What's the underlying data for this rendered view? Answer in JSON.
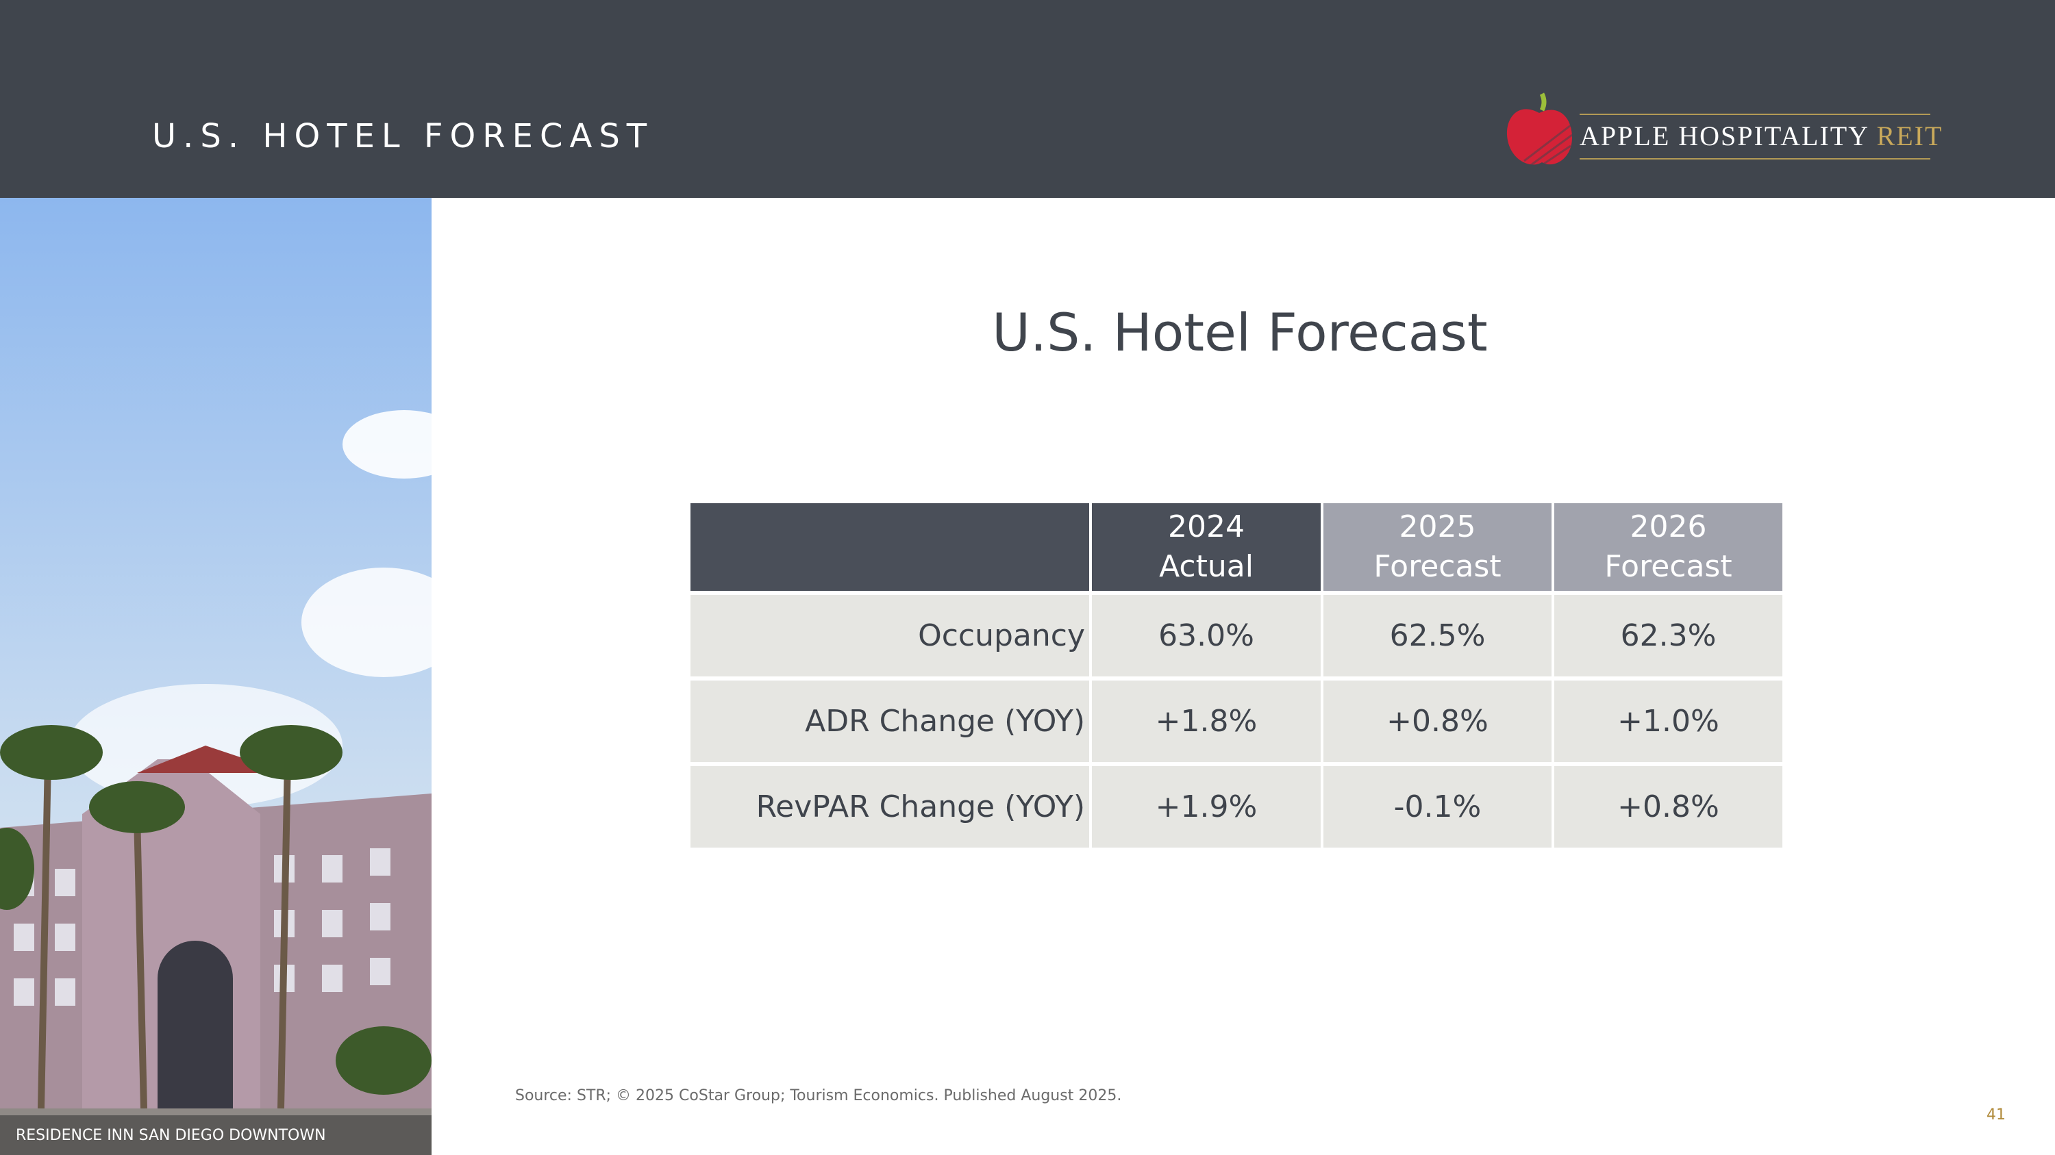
{
  "header": {
    "title": "U.S. HOTEL FORECAST",
    "logo": {
      "name": "APPLE HOSPITALITY",
      "suffix": "REIT"
    }
  },
  "photo": {
    "caption": "RESIDENCE INN SAN DIEGO DOWNTOWN"
  },
  "main_title": "U.S. Hotel Forecast",
  "table": {
    "columns": [
      [
        "2024",
        "Actual"
      ],
      [
        "2025",
        "Forecast"
      ],
      [
        "2026",
        "Forecast"
      ]
    ],
    "rows": [
      [
        "Occupancy",
        "63.0%",
        "62.5%",
        "62.3%"
      ],
      [
        "ADR Change (YOY)",
        "+1.8%",
        "+0.8%",
        "+1.0%"
      ],
      [
        "RevPAR Change (YOY)",
        "+1.9%",
        "-0.1%",
        "+0.8%"
      ]
    ]
  },
  "source": "Source: STR; © 2025 CoStar Group; Tourism Economics. Published August 2025.",
  "page_number": "41"
}
